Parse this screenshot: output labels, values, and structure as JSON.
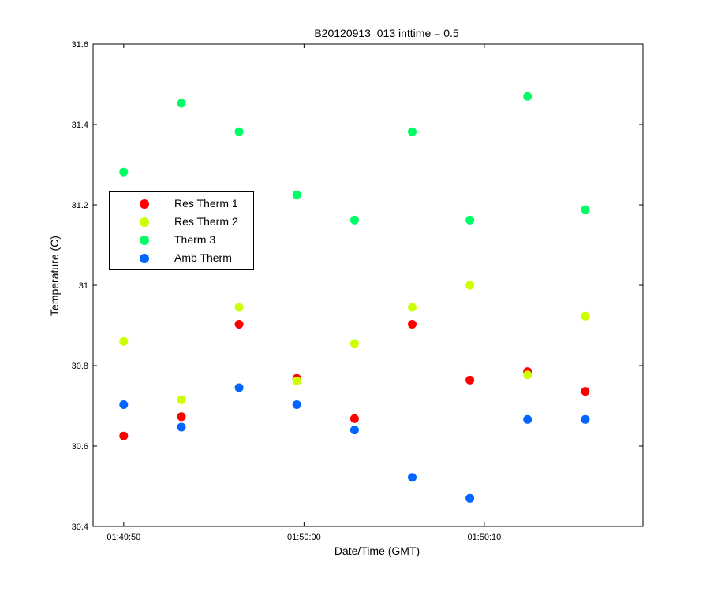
{
  "chart_data": {
    "type": "scatter",
    "title": "B20120913_013 inttime = 0.5",
    "xlabel": "Date/Time (GMT)",
    "ylabel": "Temperature (C)",
    "x_type": "time",
    "xlim": [
      "01:49:48.3",
      "01:50:18.8"
    ],
    "ylim": [
      30.4,
      31.6
    ],
    "x_ticks": [
      "01:49:50",
      "01:50:00",
      "01:50:10"
    ],
    "y_ticks": [
      "30.4",
      "30.6",
      "30.8",
      "31",
      "31.2",
      "31.4",
      "31.6"
    ],
    "grid": false,
    "legend_position": "left",
    "x": [
      "01:49:50.0",
      "01:49:53.2",
      "01:49:56.4",
      "01:49:59.6",
      "01:50:02.8",
      "01:50:06.0",
      "01:50:09.2",
      "01:50:12.4",
      "01:50:15.6"
    ],
    "series": [
      {
        "name": "Res Therm 1",
        "color": "#ff0000",
        "values": [
          30.625,
          30.673,
          30.903,
          30.768,
          30.668,
          30.903,
          30.764,
          30.785,
          30.736
        ]
      },
      {
        "name": "Res Therm 2",
        "color": "#ccff00",
        "values": [
          30.86,
          30.715,
          30.945,
          30.762,
          30.855,
          30.945,
          31.0,
          30.777,
          30.923
        ]
      },
      {
        "name": "Therm 3",
        "color": "#00ff66",
        "values": [
          31.282,
          31.453,
          31.382,
          31.225,
          31.162,
          31.382,
          31.162,
          31.47,
          31.188
        ]
      },
      {
        "name": "Amb Therm",
        "color": "#0066ff",
        "values": [
          30.703,
          30.647,
          30.745,
          30.703,
          30.64,
          30.522,
          30.47,
          30.666,
          30.666
        ]
      }
    ]
  }
}
